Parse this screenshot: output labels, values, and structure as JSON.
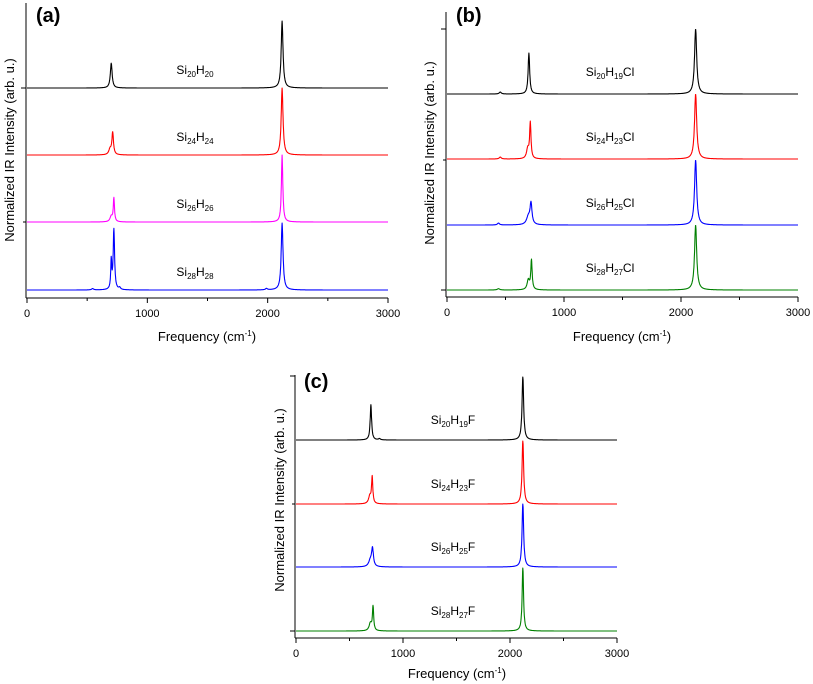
{
  "chart_data": [
    {
      "type": "line",
      "panel": "(a)",
      "xlabel": "Frequency (cm",
      "xlabel_sup": "-1",
      "xlabel_end": ")",
      "ylabel": "Normalized IR Intensity (arb. u.)",
      "xlim": [
        0,
        3000
      ],
      "xticks": [
        0,
        1000,
        2000,
        3000
      ],
      "xtick_labels": [
        "0",
        "1000",
        "2000",
        "3000"
      ],
      "stacked": true,
      "series": [
        {
          "name": "Si20H20",
          "label": {
            "base": "Si",
            "s1": "20",
            "mid": "H",
            "s2": "20",
            "end": ""
          },
          "color": "#000000",
          "peaks": [
            {
              "x": 700,
              "h": 0.37,
              "w": 9
            },
            {
              "x": 2120,
              "h": 1.0,
              "w": 9
            }
          ]
        },
        {
          "name": "Si24H24",
          "label": {
            "base": "Si",
            "s1": "24",
            "mid": "H",
            "s2": "24",
            "end": ""
          },
          "color": "#ff0000",
          "peaks": [
            {
              "x": 690,
              "h": 0.08,
              "w": 12
            },
            {
              "x": 712,
              "h": 0.33,
              "w": 8
            },
            {
              "x": 2120,
              "h": 1.0,
              "w": 9
            }
          ]
        },
        {
          "name": "Si26H26",
          "label": {
            "base": "Si",
            "s1": "26",
            "mid": "H",
            "s2": "26",
            "end": ""
          },
          "color": "#ff00ff",
          "peaks": [
            {
              "x": 700,
              "h": 0.08,
              "w": 12
            },
            {
              "x": 722,
              "h": 0.35,
              "w": 6
            },
            {
              "x": 2120,
              "h": 1.0,
              "w": 7
            }
          ]
        },
        {
          "name": "Si28H28",
          "label": {
            "base": "Si",
            "s1": "28",
            "mid": "H",
            "s2": "28",
            "end": ""
          },
          "color": "#0000ff",
          "peaks": [
            {
              "x": 545,
              "h": 0.02,
              "w": 10
            },
            {
              "x": 700,
              "h": 0.42,
              "w": 5
            },
            {
              "x": 722,
              "h": 0.9,
              "w": 7
            },
            {
              "x": 770,
              "h": 0.03,
              "w": 8
            },
            {
              "x": 1990,
              "h": 0.02,
              "w": 10
            },
            {
              "x": 2120,
              "h": 1.0,
              "w": 9
            }
          ]
        }
      ]
    },
    {
      "type": "line",
      "panel": "(b)",
      "xlabel": "Frequency (cm",
      "xlabel_sup": "-1",
      "xlabel_end": ")",
      "ylabel": "Normalized IR Intensity (arb. u.)",
      "xlim": [
        0,
        3000
      ],
      "xticks": [
        0,
        1000,
        2000,
        3000
      ],
      "xtick_labels": [
        "0",
        "1000",
        "2000",
        "3000"
      ],
      "stacked": true,
      "series": [
        {
          "name": "Si20H19Cl",
          "label": {
            "base": "Si",
            "s1": "20",
            "mid": "H",
            "s2": "19",
            "end": "Cl"
          },
          "color": "#000000",
          "peaks": [
            {
              "x": 455,
              "h": 0.03,
              "w": 10
            },
            {
              "x": 700,
              "h": 0.63,
              "w": 8
            },
            {
              "x": 2125,
              "h": 1.0,
              "w": 11
            }
          ]
        },
        {
          "name": "Si24H23Cl",
          "label": {
            "base": "Si",
            "s1": "24",
            "mid": "H",
            "s2": "23",
            "end": "Cl"
          },
          "color": "#ff0000",
          "peaks": [
            {
              "x": 455,
              "h": 0.03,
              "w": 10
            },
            {
              "x": 690,
              "h": 0.15,
              "w": 12
            },
            {
              "x": 712,
              "h": 0.55,
              "w": 7
            },
            {
              "x": 2125,
              "h": 1.0,
              "w": 11
            }
          ]
        },
        {
          "name": "Si26H25Cl",
          "label": {
            "base": "Si",
            "s1": "26",
            "mid": "H",
            "s2": "25",
            "end": "Cl"
          },
          "color": "#0000ff",
          "peaks": [
            {
              "x": 440,
              "h": 0.03,
              "w": 10
            },
            {
              "x": 695,
              "h": 0.12,
              "w": 18
            },
            {
              "x": 718,
              "h": 0.32,
              "w": 10
            },
            {
              "x": 2125,
              "h": 1.0,
              "w": 11
            }
          ]
        },
        {
          "name": "Si28H27Cl",
          "label": {
            "base": "Si",
            "s1": "28",
            "mid": "H",
            "s2": "27",
            "end": "Cl"
          },
          "color": "#008000",
          "peaks": [
            {
              "x": 440,
              "h": 0.02,
              "w": 12
            },
            {
              "x": 695,
              "h": 0.15,
              "w": 12
            },
            {
              "x": 722,
              "h": 0.45,
              "w": 7
            },
            {
              "x": 2125,
              "h": 1.0,
              "w": 11
            }
          ]
        }
      ]
    },
    {
      "type": "line",
      "panel": "(c)",
      "xlabel": "Frequency (cm",
      "xlabel_sup": "-1",
      "xlabel_end": ")",
      "ylabel": "Normalized IR Intensity (arb. u.)",
      "xlim": [
        0,
        3000
      ],
      "xticks": [
        0,
        1000,
        2000,
        3000
      ],
      "xtick_labels": [
        "0",
        "1000",
        "2000",
        "3000"
      ],
      "stacked": true,
      "series": [
        {
          "name": "Si20H19F",
          "label": {
            "base": "Si",
            "s1": "20",
            "mid": "H",
            "s2": "19",
            "end": "F"
          },
          "color": "#000000",
          "peaks": [
            {
              "x": 700,
              "h": 0.56,
              "w": 8
            },
            {
              "x": 780,
              "h": 0.02,
              "w": 10
            },
            {
              "x": 2120,
              "h": 1.0,
              "w": 9
            }
          ]
        },
        {
          "name": "Si24H23F",
          "label": {
            "base": "Si",
            "s1": "24",
            "mid": "H",
            "s2": "23",
            "end": "F"
          },
          "color": "#ff0000",
          "peaks": [
            {
              "x": 690,
              "h": 0.12,
              "w": 14
            },
            {
              "x": 712,
              "h": 0.42,
              "w": 7
            },
            {
              "x": 2120,
              "h": 1.0,
              "w": 9
            }
          ]
        },
        {
          "name": "Si26H25F",
          "label": {
            "base": "Si",
            "s1": "26",
            "mid": "H",
            "s2": "25",
            "end": "F"
          },
          "color": "#0000ff",
          "peaks": [
            {
              "x": 695,
              "h": 0.1,
              "w": 18
            },
            {
              "x": 715,
              "h": 0.28,
              "w": 10
            },
            {
              "x": 2120,
              "h": 1.0,
              "w": 9
            }
          ]
        },
        {
          "name": "Si28H27F",
          "label": {
            "base": "Si",
            "s1": "28",
            "mid": "H",
            "s2": "27",
            "end": "F"
          },
          "color": "#008000",
          "peaks": [
            {
              "x": 695,
              "h": 0.12,
              "w": 14
            },
            {
              "x": 720,
              "h": 0.38,
              "w": 7
            },
            {
              "x": 2120,
              "h": 1.0,
              "w": 8
            }
          ]
        }
      ]
    }
  ]
}
